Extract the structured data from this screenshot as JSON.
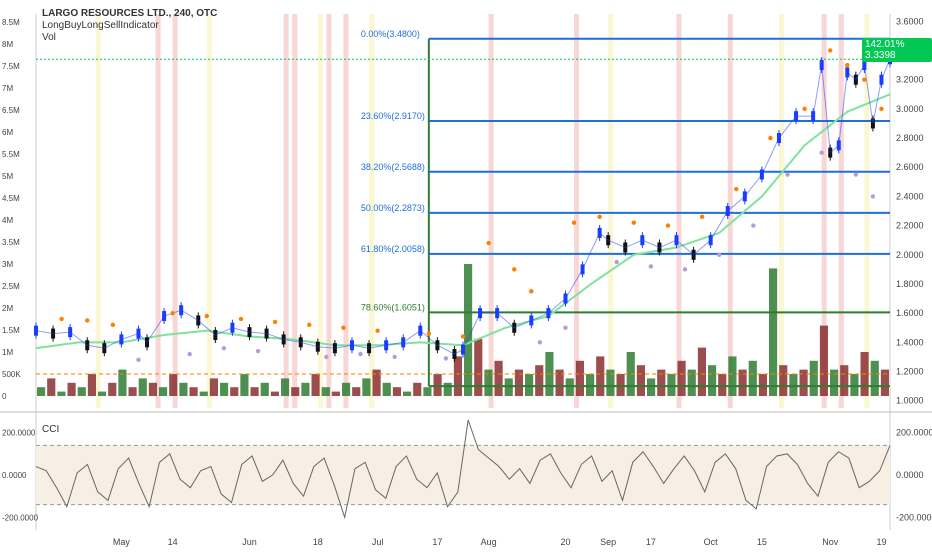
{
  "header": {
    "title": "LARGO RESOURCES LTD., 240, OTC",
    "indicator": "LongBuyLongSellIndicator",
    "volume": "Vol"
  },
  "cci_label": "CCI",
  "price_badge": {
    "text": "142.01% 3.3398",
    "color": "#00c853"
  },
  "colors": {
    "up": "#1a3cff",
    "down": "#111111",
    "fib": "#1e6fd9",
    "fib_green": "#2e7d32",
    "sar_orange": "#ff7f00",
    "sar_purple": "#b39ddb",
    "ma": "#7fe39a",
    "vol_green": "#2e7d32",
    "vol_red": "#8b2e2e",
    "cci_line": "#666666",
    "cci_band": "#f7efe4",
    "red_band": "#f6c4c4",
    "yellow_band": "#fbf4c0"
  },
  "chart_data": {
    "type": "candlestick",
    "right_axis": {
      "ticks": [
        1.0,
        1.2,
        1.4,
        1.6,
        1.8,
        2.0,
        2.2,
        2.4,
        2.6,
        2.8,
        3.0,
        3.2,
        3.4,
        3.6
      ],
      "labels": [
        "1.0000",
        "1.2000",
        "1.4000",
        "1.6000",
        "1.8000",
        "2.0000",
        "2.2000",
        "2.4000",
        "2.6000",
        "2.8000",
        "3.0000",
        "3.2000",
        "3.4000",
        "3.6000"
      ]
    },
    "volume_axis": {
      "labels": [
        "0",
        "500K",
        "1M",
        "1.5M",
        "2M",
        "2.5M",
        "3M",
        "3.5M",
        "4M",
        "4.5M",
        "5M",
        "5.5M",
        "6M",
        "6.5M",
        "7M",
        "7.5M",
        "8M",
        "8.5M"
      ],
      "values": [
        0,
        0.5,
        1,
        1.5,
        2,
        2.5,
        3,
        3.5,
        4,
        4.5,
        5,
        5.5,
        6,
        6.5,
        7,
        7.5,
        8,
        8.5
      ]
    },
    "x_axis": {
      "labels": [
        "May",
        "14",
        "Jun",
        "18",
        "Jul",
        "17",
        "Aug",
        "20",
        "Sep",
        "17",
        "Oct",
        "15",
        "Nov",
        "19"
      ],
      "pos": [
        0.1,
        0.16,
        0.25,
        0.33,
        0.4,
        0.47,
        0.53,
        0.62,
        0.67,
        0.72,
        0.79,
        0.85,
        0.93,
        0.99
      ]
    },
    "fib_levels": [
      {
        "label": "0.00%(3.4800)",
        "value": 3.48,
        "color": "#1e6fd9"
      },
      {
        "label": "23.60%(2.9170)",
        "value": 2.917,
        "color": "#1e6fd9"
      },
      {
        "label": "38.20%(2.5688)",
        "value": 2.5688,
        "color": "#1e6fd9"
      },
      {
        "label": "50.00%(2.2873)",
        "value": 2.2873,
        "color": "#1e6fd9"
      },
      {
        "label": "61.80%(2.0058)",
        "value": 2.0058,
        "color": "#1e6fd9"
      },
      {
        "label": "78.60%(1.6051)",
        "value": 1.6051,
        "color": "#2e7d32"
      },
      {
        "label": "",
        "value": 1.1,
        "color": "#2e7d32"
      }
    ],
    "price_path": [
      [
        0.0,
        1.48
      ],
      [
        0.02,
        1.46
      ],
      [
        0.04,
        1.47
      ],
      [
        0.06,
        1.38
      ],
      [
        0.08,
        1.36
      ],
      [
        0.1,
        1.42
      ],
      [
        0.12,
        1.46
      ],
      [
        0.13,
        1.4
      ],
      [
        0.15,
        1.58
      ],
      [
        0.17,
        1.62
      ],
      [
        0.19,
        1.55
      ],
      [
        0.21,
        1.45
      ],
      [
        0.23,
        1.5
      ],
      [
        0.25,
        1.47
      ],
      [
        0.27,
        1.46
      ],
      [
        0.29,
        1.42
      ],
      [
        0.31,
        1.4
      ],
      [
        0.33,
        1.37
      ],
      [
        0.35,
        1.36
      ],
      [
        0.37,
        1.38
      ],
      [
        0.39,
        1.36
      ],
      [
        0.41,
        1.38
      ],
      [
        0.43,
        1.4
      ],
      [
        0.45,
        1.48
      ],
      [
        0.47,
        1.38
      ],
      [
        0.49,
        1.32
      ],
      [
        0.5,
        1.35
      ],
      [
        0.52,
        1.6
      ],
      [
        0.54,
        1.6
      ],
      [
        0.56,
        1.5
      ],
      [
        0.58,
        1.55
      ],
      [
        0.6,
        1.6
      ],
      [
        0.62,
        1.7
      ],
      [
        0.64,
        1.9
      ],
      [
        0.66,
        2.15
      ],
      [
        0.67,
        2.1
      ],
      [
        0.69,
        2.05
      ],
      [
        0.71,
        2.1
      ],
      [
        0.73,
        2.05
      ],
      [
        0.75,
        2.1
      ],
      [
        0.77,
        2.0
      ],
      [
        0.79,
        2.1
      ],
      [
        0.81,
        2.3
      ],
      [
        0.83,
        2.4
      ],
      [
        0.85,
        2.55
      ],
      [
        0.87,
        2.8
      ],
      [
        0.89,
        2.95
      ],
      [
        0.91,
        2.95
      ],
      [
        0.92,
        3.3
      ],
      [
        0.93,
        2.7
      ],
      [
        0.94,
        2.75
      ],
      [
        0.95,
        3.25
      ],
      [
        0.96,
        3.2
      ],
      [
        0.97,
        3.3
      ],
      [
        0.98,
        2.9
      ],
      [
        0.99,
        3.2
      ],
      [
        1.0,
        3.34
      ]
    ],
    "ma_path": [
      [
        0.0,
        1.36
      ],
      [
        0.05,
        1.4
      ],
      [
        0.1,
        1.4
      ],
      [
        0.15,
        1.45
      ],
      [
        0.2,
        1.48
      ],
      [
        0.25,
        1.44
      ],
      [
        0.3,
        1.42
      ],
      [
        0.35,
        1.38
      ],
      [
        0.4,
        1.38
      ],
      [
        0.45,
        1.4
      ],
      [
        0.5,
        1.38
      ],
      [
        0.55,
        1.5
      ],
      [
        0.6,
        1.58
      ],
      [
        0.65,
        1.8
      ],
      [
        0.7,
        2.0
      ],
      [
        0.75,
        2.05
      ],
      [
        0.8,
        2.15
      ],
      [
        0.85,
        2.4
      ],
      [
        0.9,
        2.75
      ],
      [
        0.95,
        2.98
      ],
      [
        1.0,
        3.1
      ]
    ],
    "sar_orange": [
      [
        0.03,
        1.56
      ],
      [
        0.06,
        1.55
      ],
      [
        0.09,
        1.52
      ],
      [
        0.16,
        1.6
      ],
      [
        0.2,
        1.58
      ],
      [
        0.24,
        1.56
      ],
      [
        0.28,
        1.54
      ],
      [
        0.32,
        1.52
      ],
      [
        0.36,
        1.5
      ],
      [
        0.4,
        1.48
      ],
      [
        0.46,
        1.46
      ],
      [
        0.5,
        1.44
      ],
      [
        0.53,
        2.08
      ],
      [
        0.56,
        1.9
      ],
      [
        0.58,
        1.75
      ],
      [
        0.63,
        2.22
      ],
      [
        0.66,
        2.26
      ],
      [
        0.7,
        2.22
      ],
      [
        0.74,
        2.2
      ],
      [
        0.78,
        2.26
      ],
      [
        0.82,
        2.45
      ],
      [
        0.86,
        2.8
      ],
      [
        0.9,
        3.0
      ],
      [
        0.93,
        3.4
      ],
      [
        0.95,
        3.3
      ],
      [
        0.97,
        3.2
      ],
      [
        0.99,
        3.0
      ]
    ],
    "sar_purple": [
      [
        0.12,
        1.28
      ],
      [
        0.18,
        1.32
      ],
      [
        0.22,
        1.36
      ],
      [
        0.26,
        1.34
      ],
      [
        0.34,
        1.3
      ],
      [
        0.38,
        1.32
      ],
      [
        0.42,
        1.3
      ],
      [
        0.48,
        1.29
      ],
      [
        0.59,
        1.4
      ],
      [
        0.62,
        1.5
      ],
      [
        0.68,
        1.95
      ],
      [
        0.72,
        1.92
      ],
      [
        0.76,
        1.9
      ],
      [
        0.8,
        2.0
      ],
      [
        0.84,
        2.2
      ],
      [
        0.88,
        2.55
      ],
      [
        0.92,
        2.7
      ],
      [
        0.96,
        2.55
      ],
      [
        0.98,
        2.4
      ]
    ],
    "volume_bars": [
      0.2,
      0.4,
      0.1,
      0.3,
      0.2,
      0.5,
      0.1,
      0.3,
      0.6,
      0.2,
      0.4,
      0.3,
      0.2,
      0.5,
      0.3,
      0.2,
      0.1,
      0.4,
      0.3,
      0.2,
      0.5,
      0.2,
      0.3,
      0.1,
      0.4,
      0.2,
      0.3,
      0.5,
      0.2,
      0.1,
      0.3,
      0.2,
      0.4,
      0.6,
      0.3,
      0.2,
      0.1,
      0.3,
      0.2,
      0.5,
      0.3,
      0.9,
      3.0,
      1.3,
      0.6,
      0.8,
      0.4,
      0.6,
      0.5,
      0.7,
      1.0,
      0.6,
      0.4,
      0.8,
      0.5,
      0.9,
      0.6,
      0.5,
      1.0,
      0.7,
      0.4,
      0.6,
      0.5,
      0.8,
      0.6,
      1.1,
      0.7,
      0.5,
      0.9,
      0.6,
      0.8,
      0.5,
      2.9,
      0.7,
      0.5,
      0.6,
      0.8,
      1.6,
      0.6,
      0.7,
      0.5,
      1.0,
      0.8,
      0.6
    ],
    "volume_colors": "alternating",
    "cci": {
      "ticks": [
        200,
        0,
        -200
      ],
      "labels": [
        "200.0000",
        "0.0000",
        "-200.0000"
      ],
      "values": [
        40,
        20,
        -60,
        -150,
        10,
        50,
        -80,
        -120,
        30,
        80,
        -40,
        -150,
        60,
        100,
        -20,
        -60,
        20,
        40,
        -90,
        -130,
        50,
        90,
        -30,
        0,
        70,
        -40,
        -100,
        40,
        80,
        -50,
        -200,
        30,
        60,
        -70,
        -110,
        40,
        90,
        -20,
        -60,
        10,
        -150,
        -80,
        260,
        120,
        80,
        40,
        -20,
        30,
        -40,
        70,
        100,
        10,
        -60,
        50,
        90,
        -30,
        20,
        -120,
        60,
        110,
        40,
        -40,
        30,
        90,
        20,
        -80,
        60,
        100,
        30,
        -120,
        -160,
        40,
        90,
        100,
        50,
        -40,
        -100,
        60,
        110,
        80,
        -60,
        -30,
        20,
        140
      ]
    }
  }
}
